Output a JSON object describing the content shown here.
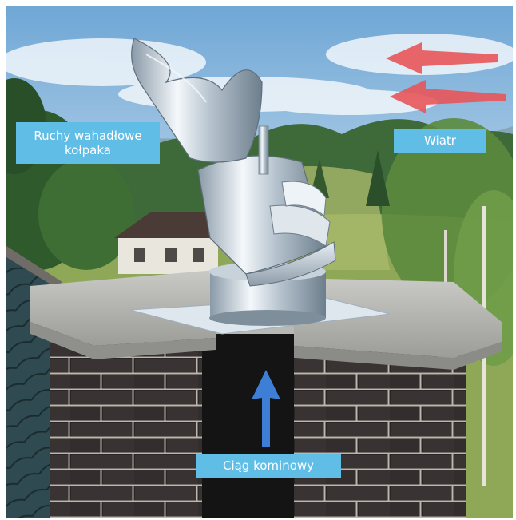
{
  "labels": {
    "swing_line1": "Ruchy wahadłowe",
    "swing_line2": "kołpaka",
    "wind": "Wiatr",
    "draft": "Ciąg kominowy"
  },
  "colors": {
    "label_bg": "#5fbde6",
    "label_text": "#ffffff",
    "wind_arrow": "#e8555a",
    "draft_arrow": "#3d7fd6"
  },
  "icons": {
    "wind_arrows": "arrow-left-icon",
    "draft_arrow": "arrow-up-icon"
  }
}
